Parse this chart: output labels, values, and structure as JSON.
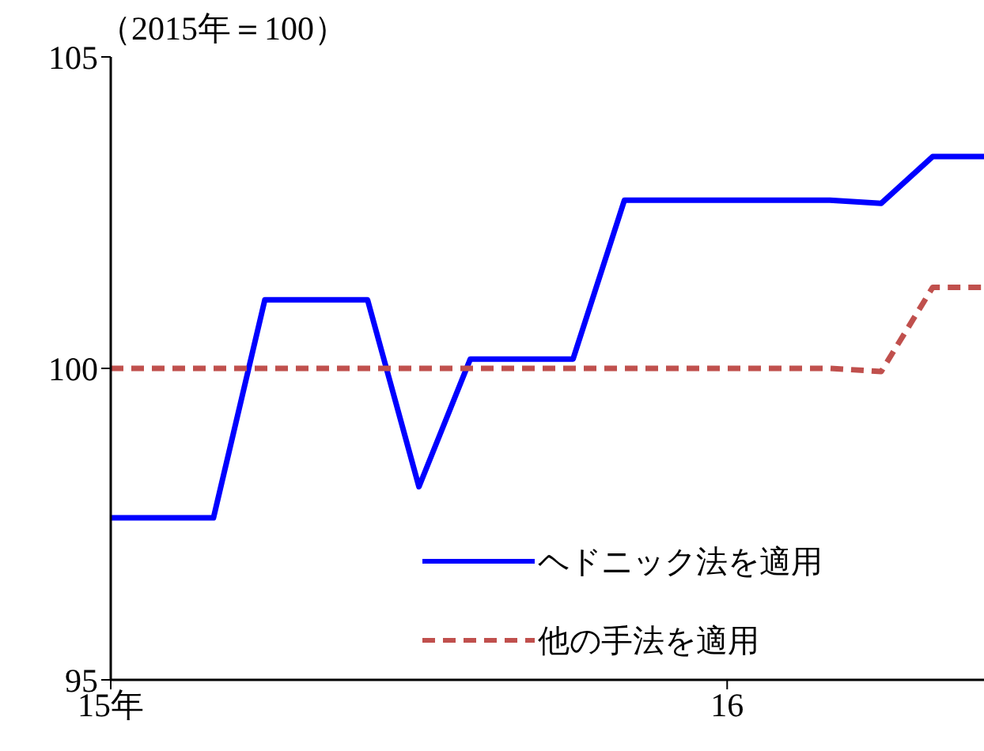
{
  "chart_data": {
    "type": "line",
    "ylabel": "（2015年＝100）",
    "categories": [
      "15年",
      null,
      null,
      null,
      null,
      null,
      null,
      null,
      null,
      null,
      null,
      null,
      "16",
      null,
      null,
      null,
      null,
      null
    ],
    "ylim": [
      95,
      105
    ],
    "yticks": [
      95,
      100,
      105
    ],
    "grid": false,
    "legend": "bottom right",
    "marker": "none",
    "series": [
      {
        "name": "ヘドニック法を適用",
        "color": "#0000ff",
        "line_style": "solid",
        "values": [
          97.6,
          97.6,
          97.6,
          101.1,
          101.1,
          101.1,
          98.1,
          100.15,
          100.15,
          100.15,
          102.7,
          102.7,
          102.7,
          102.7,
          102.7,
          102.65,
          103.4,
          103.4
        ]
      },
      {
        "name": "他の手法を適用",
        "color": "#c0504d",
        "line_style": "dashed",
        "values": [
          100,
          100,
          100,
          100,
          100,
          100,
          100,
          100,
          100,
          100,
          100,
          100,
          100,
          100,
          100,
          99.95,
          101.3,
          101.3
        ]
      }
    ]
  }
}
